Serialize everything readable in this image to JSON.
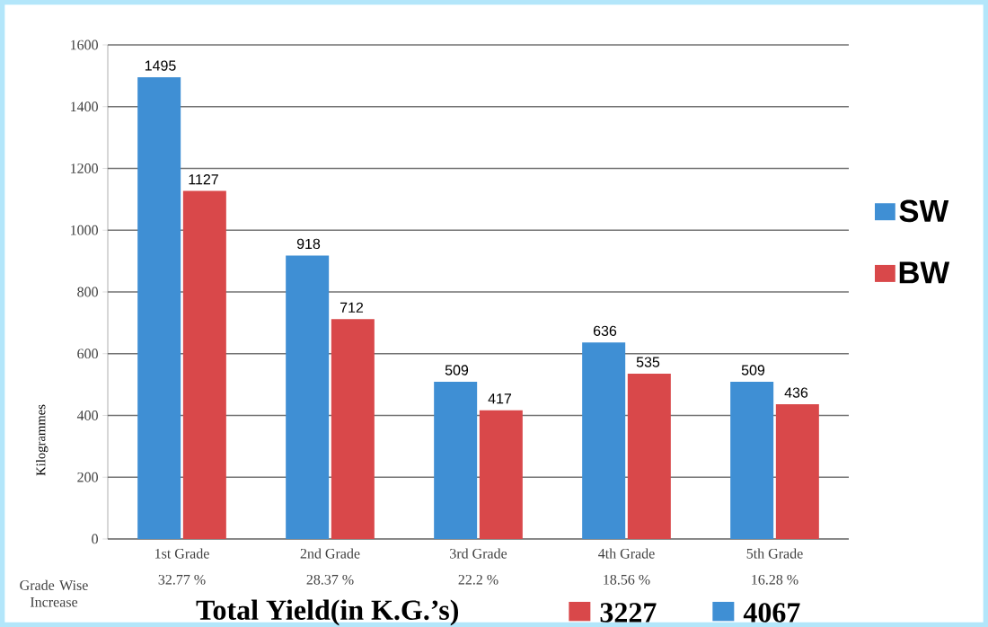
{
  "chart_data": {
    "type": "bar",
    "categories": [
      "1st Grade",
      "2nd Grade",
      "3rd Grade",
      "4th Grade",
      "5th Grade"
    ],
    "series": [
      {
        "name": "SW",
        "color": "#3f8fd4",
        "values": [
          1495,
          918,
          509,
          636,
          509
        ]
      },
      {
        "name": "BW",
        "color": "#d9484a",
        "values": [
          1127,
          712,
          417,
          535,
          436
        ]
      }
    ],
    "ylabel": "Kilogrammes",
    "ylim": [
      0,
      1600
    ],
    "yticks": [
      0,
      200,
      400,
      600,
      800,
      1000,
      1200,
      1400,
      1600
    ],
    "grid": "y",
    "legend": "right",
    "data_labels": true,
    "annotations": [
      "32.77 %",
      "28.37 %",
      "22.2 %",
      "18.56 %",
      "16.28 %",
      "Grade Wise Increase",
      "Total Yield(in K.G.’s)",
      "3227",
      "4067"
    ]
  }
}
